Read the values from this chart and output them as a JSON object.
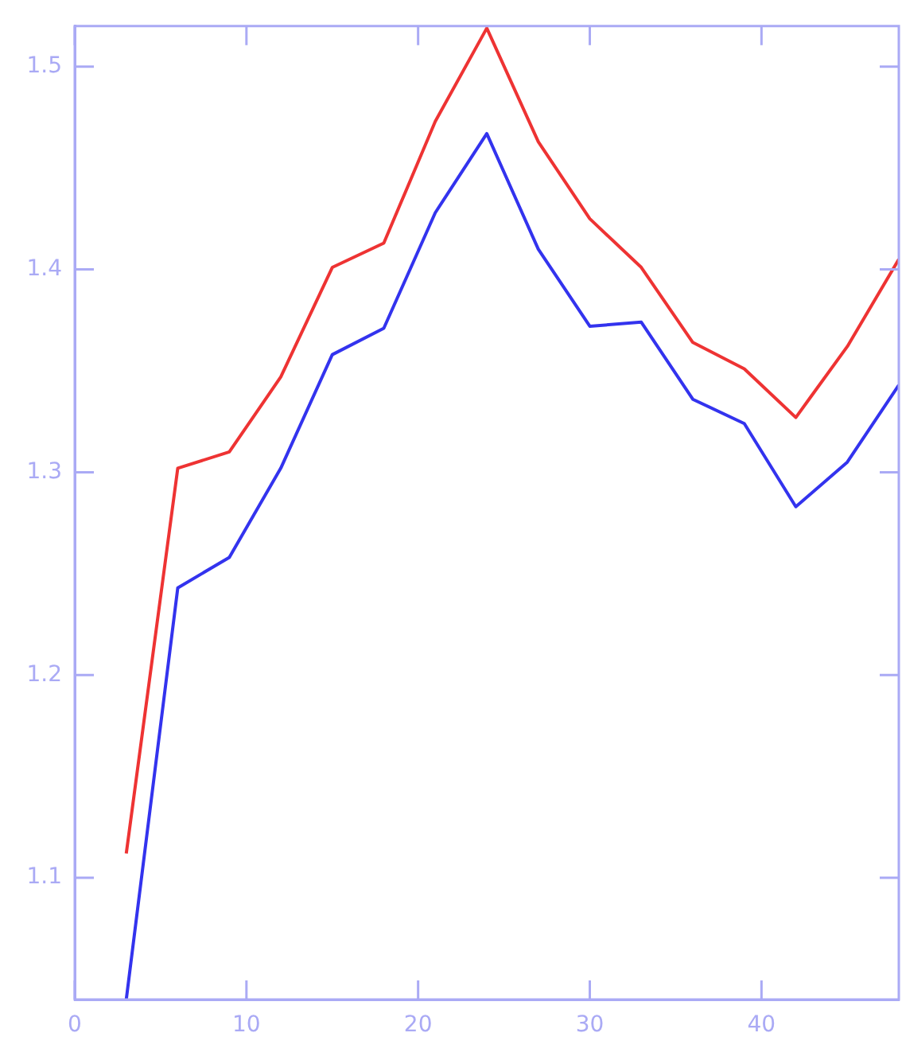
{
  "chart_data": {
    "type": "line",
    "x": [
      3,
      6,
      9,
      12,
      15,
      18,
      21,
      24,
      27,
      30,
      33,
      36,
      39,
      42,
      45,
      48
    ],
    "series": [
      {
        "color": "#ee3333",
        "values": [
          1.112,
          1.302,
          1.31,
          1.347,
          1.401,
          1.413,
          1.473,
          1.519,
          1.463,
          1.425,
          1.401,
          1.364,
          1.351,
          1.327,
          1.362,
          1.405
        ]
      },
      {
        "color": "#3333ee",
        "values": [
          1.04,
          1.243,
          1.258,
          1.302,
          1.358,
          1.371,
          1.428,
          1.467,
          1.41,
          1.372,
          1.374,
          1.336,
          1.324,
          1.283,
          1.305,
          1.343
        ]
      }
    ],
    "xlim": [
      0,
      48
    ],
    "xticks": [
      0,
      10,
      20,
      30,
      40
    ],
    "ylim": [
      1.04,
      1.52
    ],
    "yticks": [
      1.1,
      1.2,
      1.3,
      1.4,
      1.5
    ],
    "grid": false,
    "legend": false,
    "marker": "none",
    "line_style": "solid"
  }
}
